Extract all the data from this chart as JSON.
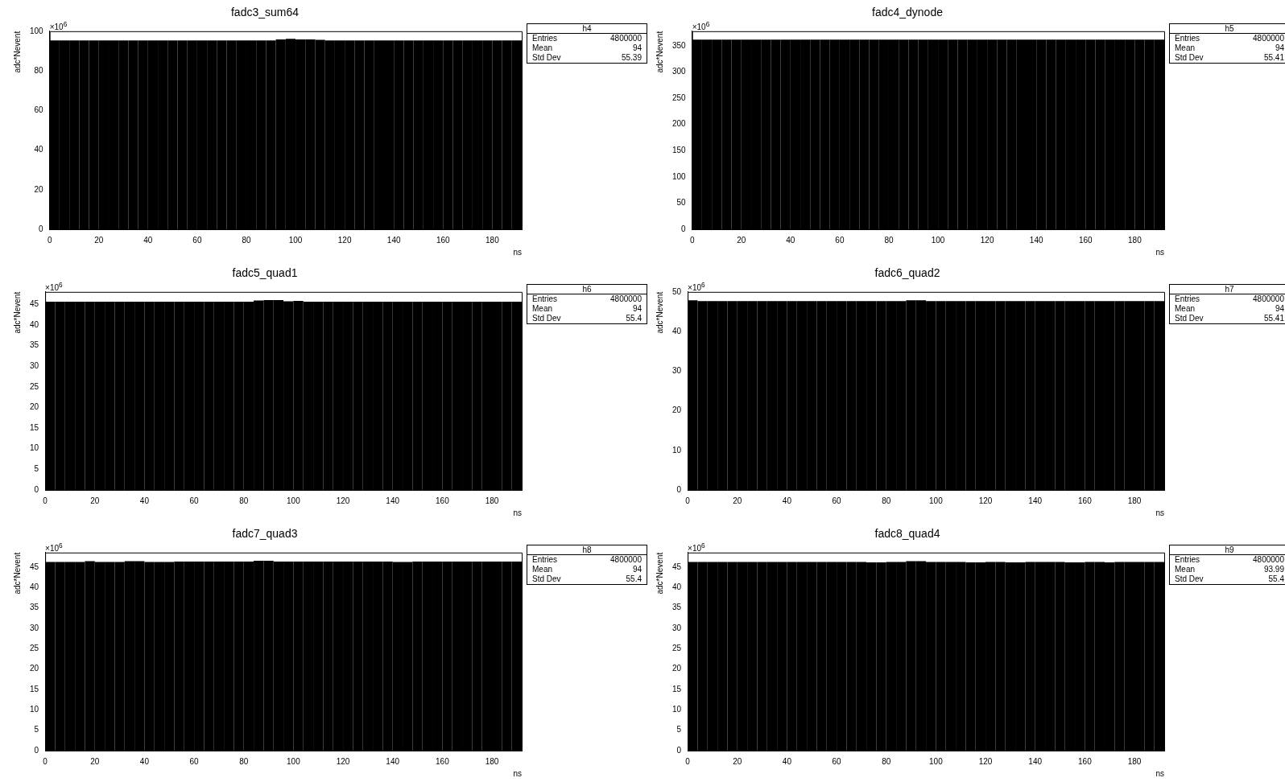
{
  "chart_data": [
    {
      "type": "histogram",
      "title": "fadc3_sum64",
      "xlabel": "ns",
      "ylabel": "adc*Nevent",
      "color": "#000000",
      "xlim": [
        0,
        192
      ],
      "xticks": [
        0,
        20,
        40,
        60,
        80,
        100,
        120,
        140,
        160,
        180
      ],
      "ylim": [
        0,
        100
      ],
      "yticks": [
        0,
        20,
        40,
        60,
        80,
        100
      ],
      "bins": [
        0,
        4,
        8,
        12,
        16,
        20,
        24,
        28,
        32,
        36,
        40,
        44,
        48,
        52,
        56,
        60,
        64,
        68,
        72,
        76,
        80,
        84,
        88,
        92,
        96,
        100,
        104,
        108,
        112,
        116,
        120,
        124,
        128,
        132,
        136,
        140,
        144,
        148,
        152,
        156,
        160,
        164,
        168,
        172,
        176,
        180,
        184,
        188,
        192
      ],
      "values": [
        95.3,
        95.3,
        95.3,
        95.3,
        95.3,
        95.3,
        95.3,
        95.3,
        95.3,
        95.3,
        95.3,
        95.3,
        95.3,
        95.3,
        95.3,
        95.3,
        95.3,
        95.3,
        95.3,
        95.3,
        95.3,
        95.3,
        95.3,
        95.9,
        96.2,
        95.9,
        95.9,
        95.7,
        95.3,
        95.3,
        95.3,
        95.3,
        95.3,
        95.3,
        95.3,
        95.3,
        95.3,
        95.3,
        95.3,
        95.3,
        95.3,
        95.3,
        95.3,
        95.3,
        95.3,
        95.3,
        95.3,
        95.3
      ],
      "annotations": [
        "×10$^{6}$",
        "h4",
        "Entries",
        "4800000",
        "Mean",
        "94",
        "Std Dev",
        "55.39"
      ]
    },
    {
      "type": "histogram",
      "title": "fadc4_dynode",
      "xlabel": "ns",
      "ylabel": "adc*Nevent",
      "color": "#000000",
      "xlim": [
        0,
        192
      ],
      "xticks": [
        0,
        20,
        40,
        60,
        80,
        100,
        120,
        140,
        160,
        180
      ],
      "ylim": [
        0,
        378
      ],
      "yticks": [
        0,
        50,
        100,
        150,
        200,
        250,
        300,
        350
      ],
      "bins": [
        0,
        4,
        8,
        12,
        16,
        20,
        24,
        28,
        32,
        36,
        40,
        44,
        48,
        52,
        56,
        60,
        64,
        68,
        72,
        76,
        80,
        84,
        88,
        92,
        96,
        100,
        104,
        108,
        112,
        116,
        120,
        124,
        128,
        132,
        136,
        140,
        144,
        148,
        152,
        156,
        160,
        164,
        168,
        172,
        176,
        180,
        184,
        188,
        192
      ],
      "values": [
        362,
        362,
        362,
        362,
        362,
        362,
        362,
        362,
        362,
        362,
        362,
        362,
        362,
        362,
        362,
        362,
        362,
        362,
        362,
        362,
        362,
        362,
        362,
        362,
        362,
        362,
        362,
        362,
        362,
        362,
        362,
        362,
        362,
        362,
        362,
        362,
        362,
        362,
        362,
        362,
        362,
        362,
        362,
        362,
        362,
        362,
        362,
        362
      ],
      "annotations": [
        "×10$^{6}$",
        "h5",
        "Entries",
        "4800000",
        "Mean",
        "94",
        "Std Dev",
        "55.41"
      ]
    },
    {
      "type": "histogram",
      "title": "fadc5_quad1",
      "xlabel": "ns",
      "ylabel": "adc*Nevent",
      "color": "#000000",
      "xlim": [
        0,
        192
      ],
      "xticks": [
        0,
        20,
        40,
        60,
        80,
        100,
        120,
        140,
        160,
        180
      ],
      "ylim": [
        0,
        48
      ],
      "yticks": [
        0,
        5,
        10,
        15,
        20,
        25,
        30,
        35,
        40,
        45
      ],
      "bins": [
        0,
        4,
        8,
        12,
        16,
        20,
        24,
        28,
        32,
        36,
        40,
        44,
        48,
        52,
        56,
        60,
        64,
        68,
        72,
        76,
        80,
        84,
        88,
        92,
        96,
        100,
        104,
        108,
        112,
        116,
        120,
        124,
        128,
        132,
        136,
        140,
        144,
        148,
        152,
        156,
        160,
        164,
        168,
        172,
        176,
        180,
        184,
        188,
        192
      ],
      "values": [
        45.6,
        45.6,
        45.6,
        45.6,
        45.6,
        45.6,
        45.6,
        45.6,
        45.6,
        45.6,
        45.6,
        45.6,
        45.6,
        45.6,
        45.6,
        45.6,
        45.6,
        45.6,
        45.6,
        45.6,
        45.6,
        45.9,
        46.0,
        46.0,
        45.7,
        45.8,
        45.6,
        45.6,
        45.6,
        45.6,
        45.6,
        45.6,
        45.6,
        45.6,
        45.6,
        45.6,
        45.6,
        45.6,
        45.6,
        45.6,
        45.6,
        45.6,
        45.6,
        45.6,
        45.6,
        45.6,
        45.6,
        45.6
      ],
      "annotations": [
        "×10$^{6}$",
        "h6",
        "Entries",
        "4800000",
        "Mean",
        "94",
        "Std Dev",
        "55.4"
      ]
    },
    {
      "type": "histogram",
      "title": "fadc6_quad2",
      "xlabel": "ns",
      "ylabel": "adc*Nevent",
      "color": "#000000",
      "xlim": [
        0,
        192
      ],
      "xticks": [
        0,
        20,
        40,
        60,
        80,
        100,
        120,
        140,
        160,
        180
      ],
      "ylim": [
        0,
        50
      ],
      "yticks": [
        0,
        10,
        20,
        30,
        40,
        50
      ],
      "bins": [
        0,
        4,
        8,
        12,
        16,
        20,
        24,
        28,
        32,
        36,
        40,
        44,
        48,
        52,
        56,
        60,
        64,
        68,
        72,
        76,
        80,
        84,
        88,
        92,
        96,
        100,
        104,
        108,
        112,
        116,
        120,
        124,
        128,
        132,
        136,
        140,
        144,
        148,
        152,
        156,
        160,
        164,
        168,
        172,
        176,
        180,
        184,
        188,
        192
      ],
      "values": [
        47.9,
        47.7,
        47.7,
        47.7,
        47.7,
        47.7,
        47.7,
        47.7,
        47.7,
        47.7,
        47.7,
        47.7,
        47.7,
        47.7,
        47.7,
        47.7,
        47.7,
        47.7,
        47.7,
        47.7,
        47.7,
        47.7,
        47.9,
        47.9,
        47.7,
        47.7,
        47.7,
        47.7,
        47.7,
        47.7,
        47.7,
        47.7,
        47.7,
        47.7,
        47.7,
        47.7,
        47.7,
        47.7,
        47.7,
        47.7,
        47.7,
        47.7,
        47.7,
        47.7,
        47.7,
        47.7,
        47.7,
        47.7
      ],
      "annotations": [
        "×10$^{6}$",
        "h7",
        "Entries",
        "4800000",
        "Mean",
        "94",
        "Std Dev",
        "55.41"
      ]
    },
    {
      "type": "histogram",
      "title": "fadc7_quad3",
      "xlabel": "ns",
      "ylabel": "adc*Nevent",
      "color": "#000000",
      "xlim": [
        0,
        192
      ],
      "xticks": [
        0,
        20,
        40,
        60,
        80,
        100,
        120,
        140,
        160,
        180
      ],
      "ylim": [
        0,
        48.6
      ],
      "yticks": [
        0,
        5,
        10,
        15,
        20,
        25,
        30,
        35,
        40,
        45
      ],
      "bins": [
        0,
        4,
        8,
        12,
        16,
        20,
        24,
        28,
        32,
        36,
        40,
        44,
        48,
        52,
        56,
        60,
        64,
        68,
        72,
        76,
        80,
        84,
        88,
        92,
        96,
        100,
        104,
        108,
        112,
        116,
        120,
        124,
        128,
        132,
        136,
        140,
        144,
        148,
        152,
        156,
        160,
        164,
        168,
        172,
        176,
        180,
        184,
        188,
        192
      ],
      "values": [
        46.3,
        46.3,
        46.3,
        46.3,
        46.5,
        46.3,
        46.3,
        46.3,
        46.5,
        46.5,
        46.3,
        46.3,
        46.3,
        46.4,
        46.4,
        46.4,
        46.4,
        46.4,
        46.4,
        46.4,
        46.4,
        46.6,
        46.6,
        46.4,
        46.4,
        46.4,
        46.4,
        46.4,
        46.4,
        46.4,
        46.4,
        46.4,
        46.4,
        46.4,
        46.4,
        46.3,
        46.3,
        46.4,
        46.4,
        46.4,
        46.4,
        46.4,
        46.4,
        46.4,
        46.4,
        46.4,
        46.4,
        46.4
      ],
      "annotations": [
        "×10$^{6}$",
        "h8",
        "Entries",
        "4800000",
        "Mean",
        "94",
        "Std Dev",
        "55.4"
      ]
    },
    {
      "type": "histogram",
      "title": "fadc8_quad4",
      "xlabel": "ns",
      "ylabel": "adc*Nevent",
      "color": "#000000",
      "xlim": [
        0,
        192
      ],
      "xticks": [
        0,
        20,
        40,
        60,
        80,
        100,
        120,
        140,
        160,
        180
      ],
      "ylim": [
        0,
        48.6
      ],
      "yticks": [
        0,
        5,
        10,
        15,
        20,
        25,
        30,
        35,
        40,
        45
      ],
      "bins": [
        0,
        4,
        8,
        12,
        16,
        20,
        24,
        28,
        32,
        36,
        40,
        44,
        48,
        52,
        56,
        60,
        64,
        68,
        72,
        76,
        80,
        84,
        88,
        92,
        96,
        100,
        104,
        108,
        112,
        116,
        120,
        124,
        128,
        132,
        136,
        140,
        144,
        148,
        152,
        156,
        160,
        164,
        168,
        172,
        176,
        180,
        184,
        188,
        192
      ],
      "values": [
        46.3,
        46.3,
        46.3,
        46.3,
        46.3,
        46.3,
        46.3,
        46.3,
        46.3,
        46.3,
        46.3,
        46.3,
        46.3,
        46.3,
        46.3,
        46.3,
        46.3,
        46.3,
        46.2,
        46.2,
        46.3,
        46.3,
        46.5,
        46.5,
        46.3,
        46.3,
        46.3,
        46.3,
        46.2,
        46.2,
        46.3,
        46.3,
        46.2,
        46.2,
        46.3,
        46.3,
        46.3,
        46.3,
        46.2,
        46.2,
        46.3,
        46.3,
        46.2,
        46.3,
        46.3,
        46.3,
        46.3,
        46.3
      ],
      "annotations": [
        "×10$^{6}$",
        "h9",
        "Entries",
        "4800000",
        "Mean",
        "93.99",
        "Std Dev",
        "55.4"
      ]
    }
  ]
}
